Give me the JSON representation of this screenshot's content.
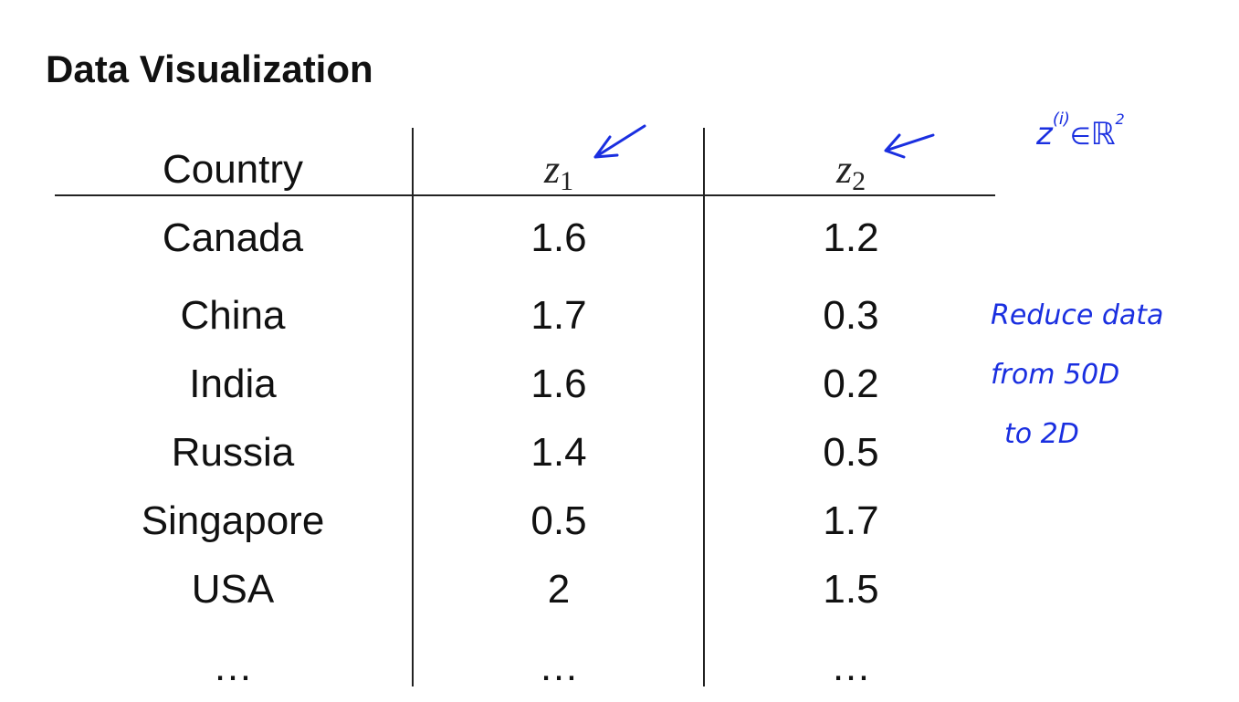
{
  "header": {
    "title": "Data Visualization"
  },
  "table": {
    "columns": [
      "Country",
      {
        "symbol": "z",
        "subscript": "1"
      },
      {
        "symbol": "z",
        "subscript": "2"
      }
    ],
    "rows": [
      [
        "Canada",
        1.6,
        1.2
      ],
      [
        "China",
        1.7,
        0.3
      ],
      [
        "India",
        1.6,
        0.2
      ],
      [
        "Russia",
        1.4,
        0.5
      ],
      [
        "Singapore",
        0.5,
        1.7
      ],
      [
        "USA",
        2,
        1.5
      ],
      [
        "…",
        "…",
        "…"
      ]
    ]
  },
  "annotations": {
    "formula": {
      "base": "z",
      "superscript": "(i)",
      "relation": "∈",
      "set": "ℝ",
      "set_superscript": "2"
    },
    "note": [
      "Reduce data",
      "from 50D",
      "to 2D"
    ]
  }
}
